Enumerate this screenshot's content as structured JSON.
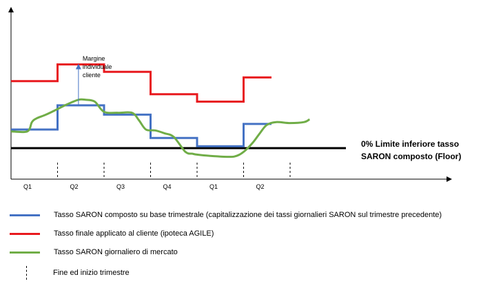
{
  "chart_data": {
    "type": "line",
    "periods": [
      "Q1",
      "Q2",
      "Q3",
      "Q4",
      "Q1",
      "Q2"
    ],
    "quarter_boundaries": [
      1,
      2,
      3,
      4,
      5,
      6
    ],
    "floor": {
      "value": 0,
      "label_line1": "0% Limite inferiore tasso",
      "label_line2": "SARON composto (Floor)"
    },
    "series": [
      {
        "name": "Tasso SARON composto su base trimestrale (capitalizzazione dei tassi giornalieri SARON sul trimestre precedente)",
        "color": "#4472C4",
        "style": "step",
        "x": [
          0,
          1,
          1,
          2,
          2,
          3,
          3,
          4,
          4,
          5,
          5,
          5.6
        ],
        "y": [
          1.0,
          1.0,
          2.3,
          2.3,
          1.8,
          1.8,
          0.55,
          0.55,
          0.1,
          0.1,
          1.3,
          1.3
        ]
      },
      {
        "name": "Tasso finale applicato al cliente (ipoteca AGILE)",
        "color": "#E8191E",
        "style": "step",
        "x": [
          0,
          1,
          1,
          2,
          2,
          3,
          3,
          4,
          4,
          5,
          5,
          5.6
        ],
        "y": [
          3.6,
          3.6,
          4.5,
          4.5,
          4.1,
          4.1,
          2.9,
          2.9,
          2.5,
          2.5,
          3.8,
          3.8
        ]
      },
      {
        "name": "Tasso SARON giornaliero di mercato",
        "color": "#70AD47",
        "style": "line",
        "x": [
          0,
          0.35,
          0.45,
          0.55,
          0.75,
          1.0,
          1.2,
          1.45,
          1.6,
          1.8,
          2.0,
          2.3,
          2.6,
          2.75,
          2.9,
          3.1,
          3.3,
          3.5,
          3.75,
          3.9,
          4.0,
          4.2,
          4.5,
          4.8,
          5.0,
          5.2,
          5.35,
          5.5,
          5.7,
          6.0,
          6.3,
          6.42
        ],
        "y": [
          0.9,
          0.9,
          1.4,
          1.6,
          1.8,
          2.1,
          2.35,
          2.6,
          2.6,
          2.5,
          1.95,
          1.9,
          1.9,
          1.5,
          1.0,
          0.95,
          0.8,
          0.6,
          -0.2,
          -0.3,
          -0.35,
          -0.4,
          -0.45,
          -0.45,
          -0.2,
          0.3,
          0.8,
          1.25,
          1.4,
          1.35,
          1.4,
          1.55
        ]
      }
    ],
    "annotation": {
      "lines": [
        "Margine",
        "individuale",
        "cliente"
      ],
      "x": 1.45,
      "from_y": 2.3,
      "to_y": 4.5
    },
    "legend_extra": "Fine ed inizio trimestre",
    "xlim": [
      0,
      6.9
    ],
    "ylim": [
      -1.0,
      5.5
    ],
    "grid": false,
    "legend_position": "bottom"
  }
}
